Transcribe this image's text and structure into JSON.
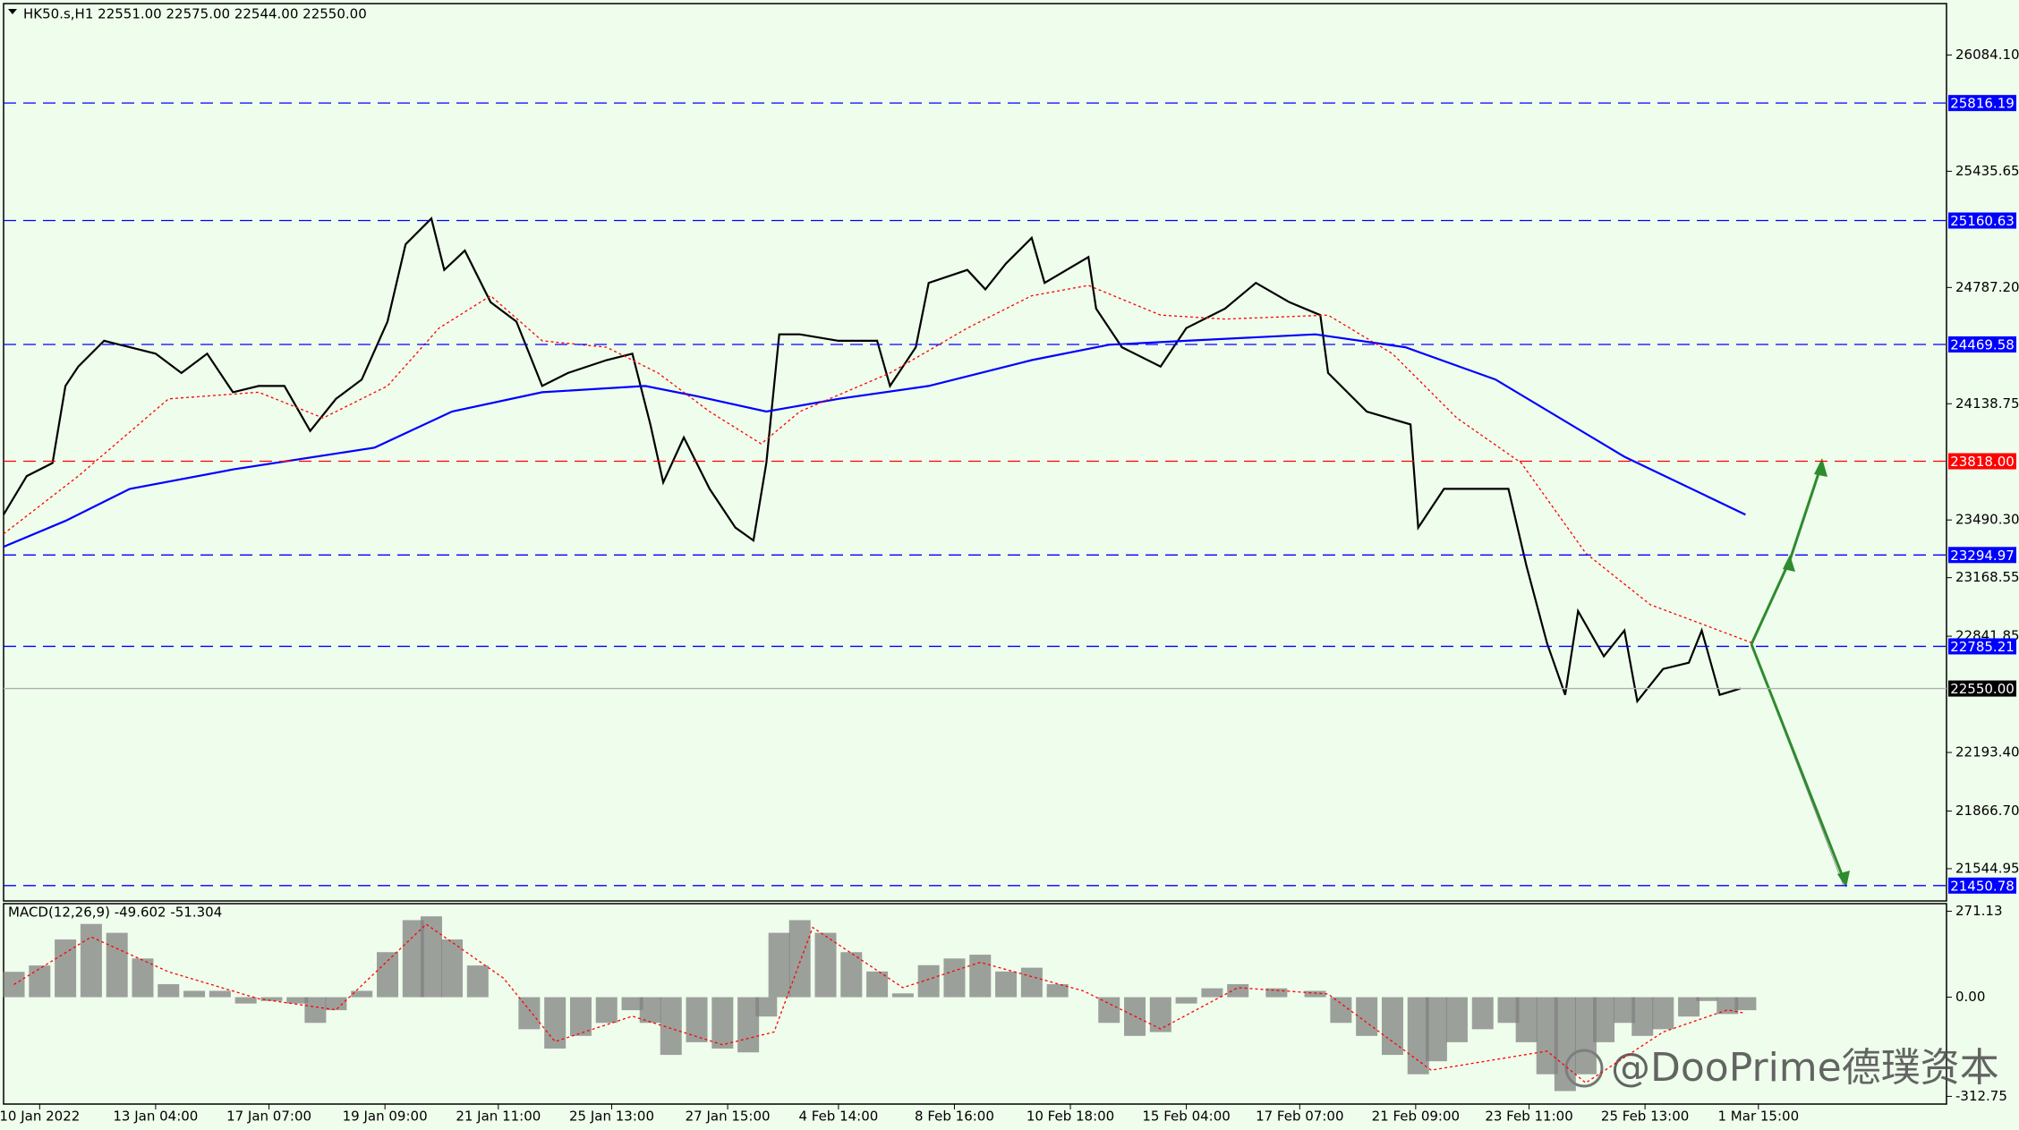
{
  "chart_data": [
    {
      "type": "line",
      "title": "HK50.s,H1  22551.00 22575.00 22544.00 22550.00",
      "xlim": [
        0,
        754
      ],
      "xticks": [
        {
          "value": 14,
          "label": "10 Jan 2022"
        },
        {
          "value": 59,
          "label": "13 Jan 04:00"
        },
        {
          "value": 103,
          "label": "17 Jan 07:00"
        },
        {
          "value": 148,
          "label": "19 Jan 09:00"
        },
        {
          "value": 192,
          "label": "21 Jan 11:00"
        },
        {
          "value": 236,
          "label": "25 Jan 13:00"
        },
        {
          "value": 281,
          "label": "27 Jan 15:00"
        },
        {
          "value": 324,
          "label": "4 Feb 14:00"
        },
        {
          "value": 369,
          "label": "8 Feb 16:00"
        },
        {
          "value": 414,
          "label": "10 Feb 18:00"
        },
        {
          "value": 459,
          "label": "15 Feb 04:00"
        },
        {
          "value": 503,
          "label": "17 Feb 07:00"
        },
        {
          "value": 548,
          "label": "21 Feb 09:00"
        },
        {
          "value": 592,
          "label": "23 Feb 11:00"
        },
        {
          "value": 637,
          "label": "25 Feb 13:00"
        },
        {
          "value": 681,
          "label": "1 Mar 15:00"
        }
      ],
      "ylim": [
        21365,
        26371
      ],
      "yticks": [
        {
          "value": 26084.1,
          "label": "26084.10"
        },
        25435.65,
        {
          "value": 24787.2,
          "label": "24787.20"
        },
        24138.75,
        {
          "value": 23490.3,
          "label": "23490.30"
        },
        23168.55,
        22841.85,
        {
          "value": 22193.4,
          "label": "22193.40"
        },
        {
          "value": 21866.7,
          "label": "21866.70"
        },
        21544.95
      ],
      "levels": [
        {
          "value": 25816.19,
          "color": "#0000ff"
        },
        {
          "value": 25160.63,
          "color": "#0000ff"
        },
        {
          "value": 24469.58,
          "color": "#0000ff"
        },
        {
          "value": 23818,
          "label": "23818.00",
          "color": "#ff0000"
        },
        {
          "value": 23294.97,
          "color": "#0000ff"
        },
        {
          "value": 22785.21,
          "color": "#0000ff"
        },
        {
          "value": 22550,
          "label": "22550.00",
          "color": "#000000"
        },
        {
          "value": 21450.78,
          "color": "#0000ff"
        }
      ],
      "series": [
        {
          "color": "#000000",
          "x": [
            0,
            9,
            19,
            24,
            29,
            39,
            49,
            59,
            69,
            79,
            89,
            99,
            109,
            119,
            129,
            139,
            149,
            156,
            166,
            171,
            179,
            189,
            199,
            209,
            219,
            234,
            244,
            251,
            256,
            264,
            274,
            284,
            291,
            296,
            301,
            309,
            324,
            339,
            344,
            354,
            359,
            374,
            381,
            389,
            399,
            404,
            421,
            424,
            434,
            449,
            459,
            474,
            486,
            499,
            511,
            514,
            529,
            546,
            549,
            559,
            574,
            584,
            591,
            599,
            606,
            611,
            621,
            629,
            634,
            644,
            654,
            659,
            666,
            674
          ],
          "values": [
            23520,
            23735,
            23808,
            24238,
            24346,
            24490,
            24454,
            24418,
            24310,
            24418,
            24203,
            24238,
            24238,
            23987,
            24166,
            24274,
            24597,
            25028,
            25172,
            24885,
            24993,
            24705,
            24597,
            24238,
            24310,
            24382,
            24418,
            24023,
            23700,
            23951,
            23664,
            23448,
            23376,
            23808,
            24526,
            24526,
            24490,
            24490,
            24238,
            24454,
            24813,
            24885,
            24777,
            24921,
            25064,
            24813,
            24957,
            24669,
            24454,
            24346,
            24561,
            24669,
            24813,
            24705,
            24633,
            24310,
            24095,
            24023,
            23448,
            23664,
            23664,
            23664,
            23233,
            22802,
            22515,
            22982,
            22730,
            22874,
            22479,
            22659,
            22694,
            22874,
            22515,
            22550
          ]
        },
        {
          "color": "#0000ff",
          "x": [
            0,
            24,
            49,
            89,
            144,
            174,
            209,
            249,
            269,
            296,
            324,
            359,
            399,
            429,
            459,
            509,
            544,
            579,
            629,
            676
          ],
          "values": [
            23341,
            23485,
            23664,
            23772,
            23894,
            24095,
            24203,
            24238,
            24181,
            24095,
            24166,
            24238,
            24382,
            24468,
            24490,
            24526,
            24454,
            24274,
            23843,
            23520
          ]
        },
        {
          "color": "#ff0000",
          "style": "dotted",
          "x": [
            0,
            29,
            64,
            99,
            124,
            149,
            169,
            189,
            209,
            234,
            254,
            274,
            294,
            309,
            344,
            374,
            399,
            421,
            449,
            474,
            514,
            539,
            564,
            589,
            614,
            639,
            659,
            679
          ],
          "values": [
            23413,
            23735,
            24166,
            24203,
            24059,
            24238,
            24561,
            24741,
            24490,
            24454,
            24310,
            24095,
            23915,
            24095,
            24310,
            24561,
            24741,
            24799,
            24633,
            24611,
            24633,
            24418,
            24059,
            23808,
            23305,
            23018,
            22910,
            22802
          ]
        }
      ],
      "watermark": "@DooPrime德璞资本"
    },
    {
      "type": "bar",
      "title": "MACD(12,26,9) -49.602 -51.304",
      "xlim": [
        0,
        754
      ],
      "ylim": [
        -337,
        295
      ],
      "yticks": [
        271.13,
        {
          "value": 0,
          "label": "0.00"
        },
        -312.75
      ],
      "series": [
        {
          "type": "bar",
          "color": "#808080",
          "x": [
            4,
            14,
            24,
            34,
            44,
            54,
            64,
            74,
            84,
            94,
            104,
            114,
            121,
            129,
            139,
            149,
            159,
            166,
            174,
            184,
            194,
            204,
            214,
            224,
            234,
            244,
            251,
            259,
            269,
            279,
            289,
            296,
            301,
            309,
            319,
            329,
            339,
            349,
            359,
            369,
            379,
            389,
            399,
            409,
            421,
            429,
            439,
            449,
            459,
            469,
            479,
            494,
            509,
            519,
            529,
            539,
            549,
            556,
            564,
            574,
            584,
            591,
            599,
            606,
            614,
            621,
            629,
            636,
            644,
            654,
            661,
            669,
            676
          ],
          "values": [
            80,
            100,
            182,
            231,
            203,
            122,
            41,
            20,
            20,
            -20,
            -12,
            -20,
            -81,
            -41,
            20,
            142,
            243,
            255,
            182,
            100,
            0,
            -101,
            -162,
            -122,
            -81,
            -41,
            -81,
            -182,
            -142,
            -162,
            -174,
            -61,
            203,
            243,
            203,
            142,
            81,
            12,
            101,
            122,
            134,
            81,
            93,
            41,
            0,
            -81,
            -122,
            -110,
            -20,
            28,
            41,
            28,
            20,
            -81,
            -122,
            -182,
            -243,
            -202,
            -142,
            -101,
            -81,
            -142,
            -243,
            -296,
            -243,
            -142,
            -81,
            -122,
            -101,
            -61,
            -12,
            -53,
            -41
          ]
        },
        {
          "type": "line",
          "color": "#ff0000",
          "style": "dotted",
          "x": [
            4,
            34,
            64,
            99,
            129,
            164,
            194,
            214,
            244,
            279,
            299,
            314,
            349,
            379,
            419,
            449,
            479,
            514,
            554,
            599,
            614,
            644,
            669,
            676
          ],
          "values": [
            40,
            190,
            80,
            -5,
            -40,
            230,
            60,
            -140,
            -60,
            -150,
            -110,
            220,
            30,
            110,
            20,
            -100,
            30,
            10,
            -230,
            -170,
            -270,
            -110,
            -40,
            -51
          ]
        }
      ]
    }
  ]
}
